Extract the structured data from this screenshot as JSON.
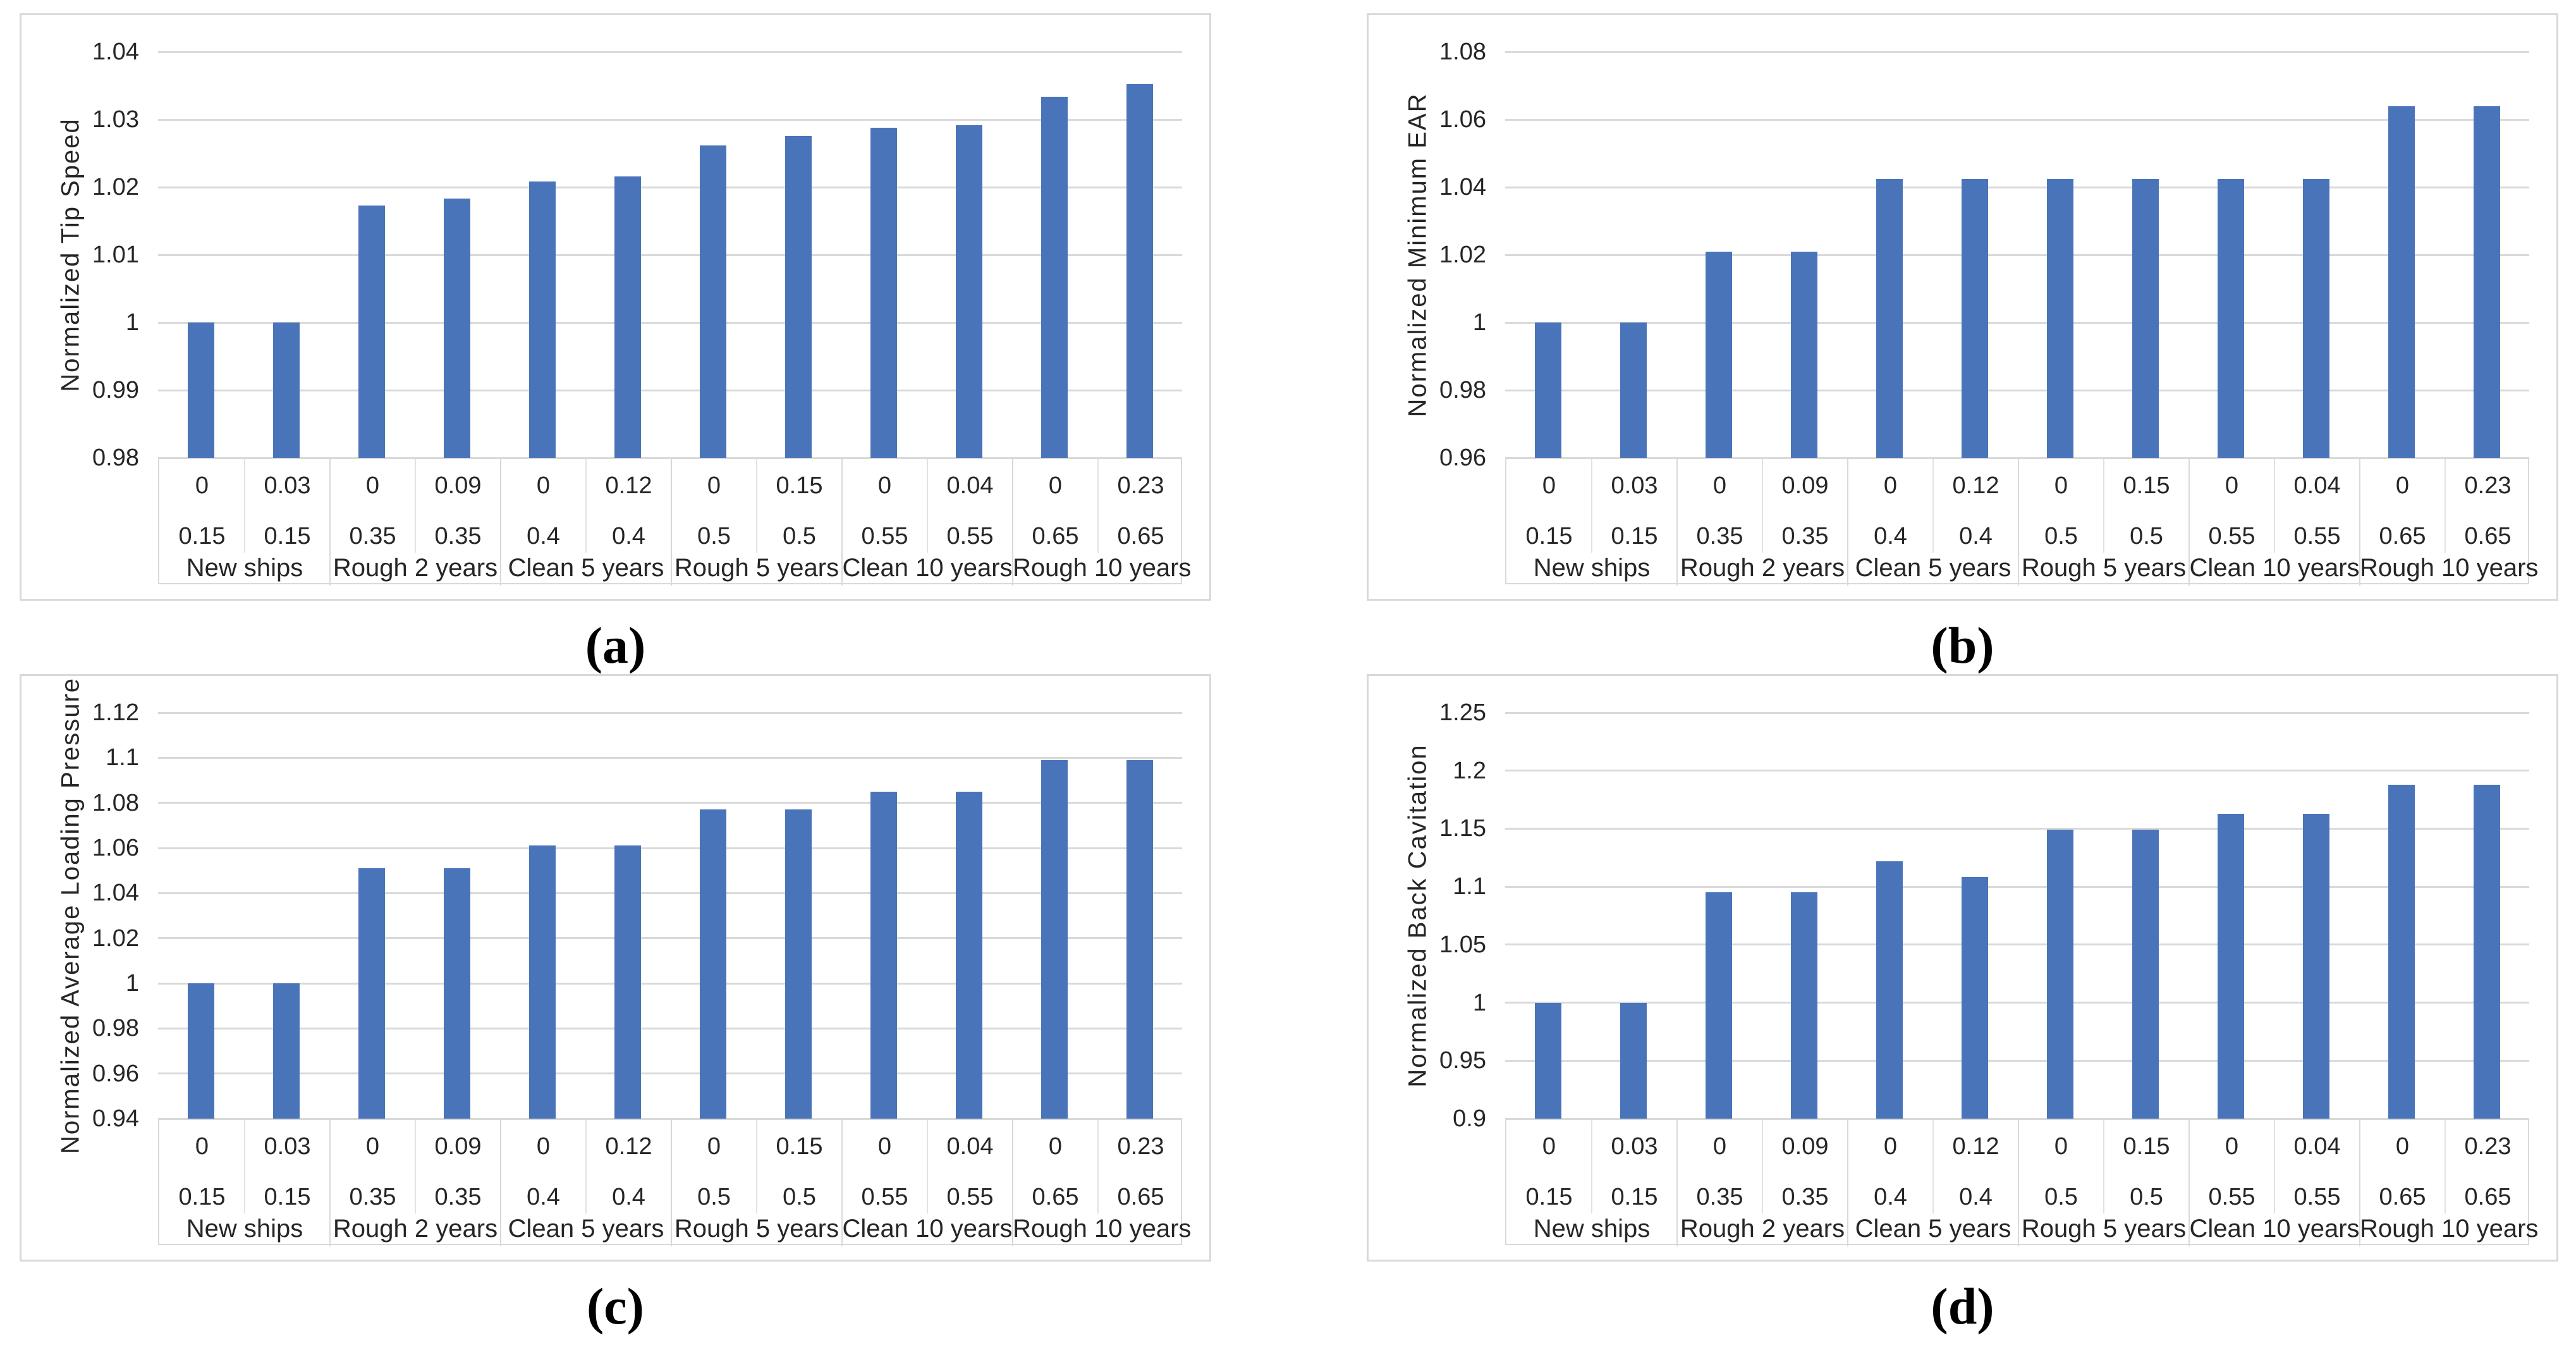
{
  "figure": {
    "background": "#FFFFFF",
    "bar_color": "#4A74B9",
    "grid_color": "#D9D9D9",
    "panel_border_color": "#D9D9D9",
    "text_color": "#262626",
    "captions": [
      "(a)",
      "(b)",
      "(c)",
      "(d)"
    ]
  },
  "chart_data": [
    {
      "type": "bar",
      "caption": "(a)",
      "ylabel": "Normalized Tip Speed",
      "ylim": [
        0.98,
        1.04
      ],
      "ytick_step": 0.01,
      "ytick_labels": [
        "0.98",
        "0.99",
        "1",
        "1.01",
        "1.02",
        "1.03",
        "1.04"
      ],
      "grid": true,
      "legend": false,
      "row1": [
        "0",
        "0.03",
        "0",
        "0.09",
        "0",
        "0.12",
        "0",
        "0.15",
        "0",
        "0.04",
        "0",
        "0.23"
      ],
      "row2": [
        "0.15",
        "0.15",
        "0.35",
        "0.35",
        "0.4",
        "0.4",
        "0.5",
        "0.5",
        "0.55",
        "0.55",
        "0.65",
        "0.65"
      ],
      "groups": [
        "New ships",
        "Rough 2 years",
        "Clean 5 years",
        "Rough 5 years",
        "Clean 10 years",
        "Rough 10 years"
      ],
      "values": [
        1.0,
        1.0,
        1.0173,
        1.0183,
        1.0208,
        1.0216,
        1.0262,
        1.0276,
        1.0288,
        1.0292,
        1.0334,
        1.0352
      ]
    },
    {
      "type": "bar",
      "caption": "(b)",
      "ylabel": "Normalized Minimum EAR",
      "ylim": [
        0.96,
        1.08
      ],
      "ytick_step": 0.02,
      "ytick_labels": [
        "0.96",
        "0.98",
        "1",
        "1.02",
        "1.04",
        "1.06",
        "1.08"
      ],
      "grid": true,
      "legend": false,
      "row1": [
        "0",
        "0.03",
        "0",
        "0.09",
        "0",
        "0.12",
        "0",
        "0.15",
        "0",
        "0.04",
        "0",
        "0.23"
      ],
      "row2": [
        "0.15",
        "0.15",
        "0.35",
        "0.35",
        "0.4",
        "0.4",
        "0.5",
        "0.5",
        "0.55",
        "0.55",
        "0.65",
        "0.65"
      ],
      "groups": [
        "New ships",
        "Rough 2 years",
        "Clean 5 years",
        "Rough 5 years",
        "Clean 10 years",
        "Rough 10 years"
      ],
      "values": [
        1.0,
        1.0,
        1.021,
        1.021,
        1.0425,
        1.0425,
        1.0425,
        1.0425,
        1.0425,
        1.0425,
        1.064,
        1.064
      ]
    },
    {
      "type": "bar",
      "caption": "(c)",
      "ylabel": "Normalized Average Loading Pressure",
      "ylim": [
        0.94,
        1.12
      ],
      "ytick_step": 0.02,
      "ytick_labels": [
        "0.94",
        "0.96",
        "0.98",
        "1",
        "1.02",
        "1.04",
        "1.06",
        "1.08",
        "1.1",
        "1.12"
      ],
      "grid": true,
      "legend": false,
      "row1": [
        "0",
        "0.03",
        "0",
        "0.09",
        "0",
        "0.12",
        "0",
        "0.15",
        "0",
        "0.04",
        "0",
        "0.23"
      ],
      "row2": [
        "0.15",
        "0.15",
        "0.35",
        "0.35",
        "0.4",
        "0.4",
        "0.5",
        "0.5",
        "0.55",
        "0.55",
        "0.65",
        "0.65"
      ],
      "groups": [
        "New ships",
        "Rough 2 years",
        "Clean 5 years",
        "Rough 5 years",
        "Clean 10 years",
        "Rough 10 years"
      ],
      "values": [
        1.0,
        1.0,
        1.051,
        1.051,
        1.061,
        1.061,
        1.077,
        1.077,
        1.085,
        1.085,
        1.099,
        1.099
      ]
    },
    {
      "type": "bar",
      "caption": "(d)",
      "ylabel": "Normalized Back Cavitation",
      "ylim": [
        0.9,
        1.25
      ],
      "ytick_step": 0.05,
      "ytick_labels": [
        "0.9",
        "0.95",
        "1",
        "1.05",
        "1.1",
        "1.15",
        "1.2",
        "1.25"
      ],
      "grid": true,
      "legend": false,
      "row1": [
        "0",
        "0.03",
        "0",
        "0.09",
        "0",
        "0.12",
        "0",
        "0.15",
        "0",
        "0.04",
        "0",
        "0.23"
      ],
      "row2": [
        "0.15",
        "0.15",
        "0.35",
        "0.35",
        "0.4",
        "0.4",
        "0.5",
        "0.5",
        "0.55",
        "0.55",
        "0.65",
        "0.65"
      ],
      "groups": [
        "New ships",
        "Rough 2 years",
        "Clean 5 years",
        "Rough 5 years",
        "Clean 10 years",
        "Rough 10 years"
      ],
      "values": [
        1.0,
        1.0,
        1.095,
        1.095,
        1.122,
        1.108,
        1.149,
        1.149,
        1.163,
        1.163,
        1.188,
        1.188
      ]
    }
  ]
}
